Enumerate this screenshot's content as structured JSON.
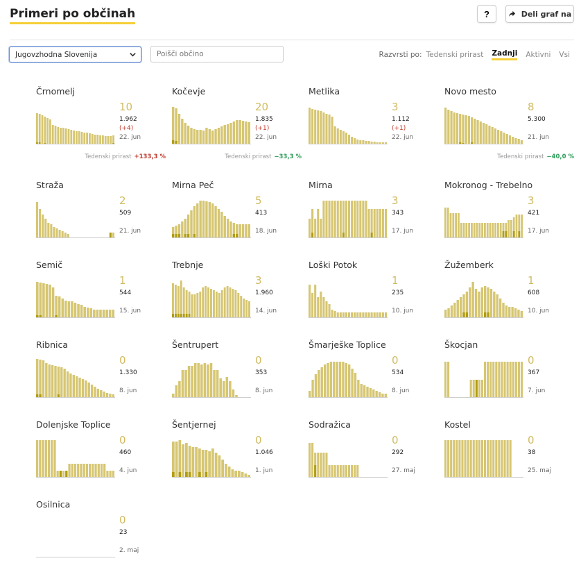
{
  "header": {
    "title": "Primeri po občinah",
    "help_label": "?",
    "share_label": "Deli graf na",
    "share_icon": "share-arrow-icon"
  },
  "filters": {
    "region_value": "Jugovzhodna Slovenija",
    "search_placeholder": "Poišči občino",
    "sort_label": "Razvrsti po:",
    "sort_options": [
      "Tedenski prirast",
      "Zadnji",
      "Aktivni",
      "Vsi"
    ],
    "active_sort": "Zadnji"
  },
  "colors": {
    "bar": "#d6c672",
    "bar_dark": "#b19d12",
    "accent": "#f5cf37",
    "number": "#d1bb62",
    "up": "#c0392b",
    "down": "#2e9d5a"
  },
  "trend_label": "Tedenski prirast",
  "chart_data": [
    {
      "type": "bar",
      "name": "Črnomelj",
      "latest": "10",
      "total": "1.962",
      "delta": "(+4)",
      "date": "22. jun",
      "trend": "+133,3 %",
      "trend_dir": "up",
      "values": [
        45,
        44,
        42,
        40,
        38,
        36,
        28,
        27,
        25,
        24,
        24,
        23,
        22,
        21,
        20,
        19,
        19,
        18,
        17,
        17,
        16,
        15,
        14,
        14,
        13,
        13,
        12,
        12,
        12,
        13
      ],
      "recent": [
        3,
        3,
        0,
        2,
        0,
        0,
        0,
        0,
        0,
        0,
        0,
        0,
        0,
        0,
        0,
        0,
        0,
        0,
        0,
        0,
        0,
        0,
        0,
        0,
        0,
        0,
        0,
        0,
        1,
        2
      ]
    },
    {
      "type": "bar",
      "name": "Kočevje",
      "latest": "20",
      "total": "1.835",
      "delta": "(+1)",
      "date": "22. jun",
      "trend": "−33,3 %",
      "trend_dir": "down",
      "values": [
        54,
        52,
        44,
        37,
        31,
        27,
        24,
        22,
        21,
        21,
        20,
        24,
        22,
        20,
        22,
        24,
        26,
        28,
        29,
        31,
        33,
        35,
        35,
        34,
        33,
        32
      ],
      "recent": [
        6,
        5,
        0,
        0,
        0,
        0,
        0,
        0,
        0,
        0,
        0,
        0,
        0,
        0,
        0,
        0,
        0,
        0,
        0,
        0,
        0,
        0,
        0,
        0,
        0,
        0
      ]
    },
    {
      "type": "bar",
      "name": "Metlika",
      "latest": "3",
      "total": "1.112",
      "delta": "(+1)",
      "date": "22. jun",
      "trend": "",
      "trend_dir": "",
      "values": [
        53,
        51,
        50,
        49,
        48,
        46,
        44,
        43,
        40,
        26,
        23,
        21,
        19,
        17,
        14,
        11,
        9,
        7,
        6,
        6,
        5,
        5,
        4,
        4,
        3,
        3,
        3,
        3
      ],
      "recent": [
        0,
        0,
        0,
        0,
        0,
        0,
        0,
        0,
        0,
        0,
        0,
        0,
        0,
        0,
        0,
        0,
        0,
        0,
        0,
        0,
        0,
        0,
        0,
        0,
        0,
        0,
        0,
        0
      ]
    },
    {
      "type": "bar",
      "name": "Novo mesto",
      "latest": "8",
      "total": "5.300",
      "delta": "",
      "date": "21. jun",
      "trend": "−40,0 %",
      "trend_dir": "down",
      "values": [
        53,
        50,
        48,
        46,
        45,
        44,
        43,
        42,
        41,
        39,
        37,
        35,
        33,
        31,
        29,
        27,
        25,
        23,
        21,
        19,
        17,
        15,
        13,
        11,
        9,
        8,
        6
      ],
      "recent": [
        0,
        0,
        0,
        0,
        0,
        3,
        2,
        0,
        0,
        3,
        0,
        0,
        0,
        0,
        0,
        0,
        0,
        0,
        0,
        0,
        0,
        0,
        0,
        0,
        0,
        0,
        0
      ]
    },
    {
      "type": "bar",
      "name": "Straža",
      "latest": "2",
      "total": "509",
      "date": "21. jun",
      "values": [
        52,
        42,
        34,
        28,
        22,
        20,
        16,
        14,
        12,
        10,
        8,
        6,
        0,
        0,
        0,
        0,
        0,
        0,
        0,
        0,
        0,
        0,
        0,
        0,
        0,
        0,
        8,
        8
      ],
      "recent": [
        0,
        0,
        0,
        0,
        0,
        0,
        0,
        0,
        0,
        0,
        0,
        0,
        0,
        0,
        0,
        0,
        0,
        0,
        0,
        0,
        0,
        0,
        0,
        0,
        0,
        0,
        8,
        0
      ]
    },
    {
      "type": "bar",
      "name": "Mirna Peč",
      "latest": "5",
      "total": "413",
      "date": "18. jun",
      "values": [
        16,
        18,
        20,
        24,
        28,
        34,
        40,
        46,
        50,
        54,
        54,
        53,
        52,
        50,
        46,
        42,
        38,
        32,
        28,
        24,
        22,
        20,
        20,
        20,
        20,
        20
      ],
      "recent": [
        6,
        6,
        6,
        0,
        6,
        6,
        0,
        6,
        0,
        0,
        0,
        0,
        0,
        0,
        0,
        0,
        0,
        0,
        0,
        0,
        6,
        6,
        0,
        0,
        0,
        0
      ]
    },
    {
      "type": "bar",
      "name": "Mirna",
      "latest": "3",
      "total": "343",
      "date": "17. jun",
      "values": [
        28,
        42,
        28,
        42,
        28,
        54,
        54,
        54,
        54,
        54,
        54,
        54,
        54,
        54,
        54,
        54,
        54,
        54,
        54,
        54,
        54,
        42,
        42,
        42,
        42,
        42,
        42,
        42
      ],
      "recent": [
        0,
        8,
        0,
        0,
        0,
        0,
        0,
        0,
        0,
        0,
        0,
        0,
        8,
        0,
        0,
        0,
        0,
        0,
        0,
        0,
        0,
        0,
        8,
        0,
        0,
        0,
        0,
        0
      ]
    },
    {
      "type": "bar",
      "name": "Mokronog - Trebelno",
      "latest": "3",
      "total": "421",
      "date": "17. jun",
      "values": [
        44,
        44,
        36,
        36,
        36,
        36,
        22,
        22,
        22,
        22,
        22,
        22,
        22,
        22,
        22,
        22,
        22,
        22,
        22,
        22,
        22,
        22,
        22,
        22,
        26,
        26,
        30,
        34,
        34,
        34
      ],
      "recent": [
        0,
        0,
        0,
        0,
        0,
        0,
        0,
        0,
        0,
        0,
        0,
        0,
        0,
        0,
        0,
        0,
        0,
        0,
        0,
        0,
        0,
        0,
        10,
        10,
        0,
        0,
        10,
        0,
        10,
        0
      ]
    },
    {
      "type": "bar",
      "name": "Semič",
      "latest": "1",
      "total": "544",
      "date": "15. jun",
      "values": [
        52,
        51,
        50,
        49,
        48,
        44,
        32,
        31,
        28,
        25,
        24,
        24,
        22,
        20,
        19,
        16,
        15,
        14,
        12,
        12,
        12,
        12,
        12,
        12,
        12
      ],
      "recent": [
        4,
        4,
        0,
        0,
        0,
        0,
        4,
        0,
        0,
        0,
        0,
        0,
        0,
        0,
        0,
        0,
        0,
        0,
        0,
        0,
        0,
        0,
        0,
        0,
        0
      ]
    },
    {
      "type": "bar",
      "name": "Trebnje",
      "latest": "3",
      "total": "1.960",
      "date": "14. jun",
      "values": [
        50,
        48,
        46,
        54,
        44,
        40,
        38,
        34,
        34,
        36,
        38,
        44,
        46,
        44,
        42,
        40,
        38,
        36,
        40,
        44,
        46,
        44,
        42,
        40,
        36,
        32,
        28,
        26,
        24
      ],
      "recent": [
        6,
        6,
        6,
        6,
        6,
        6,
        6,
        0,
        0,
        0,
        0,
        0,
        0,
        0,
        0,
        0,
        0,
        0,
        0,
        0,
        0,
        0,
        0,
        0,
        0,
        0,
        0,
        0,
        0
      ]
    },
    {
      "type": "bar",
      "name": "Loški Potok",
      "latest": "1",
      "total": "235",
      "date": "10. jun",
      "values": [
        48,
        36,
        48,
        30,
        38,
        30,
        24,
        20,
        12,
        10,
        8,
        8,
        8,
        8,
        8,
        8,
        8,
        8,
        8,
        8,
        8,
        8,
        8,
        8,
        8,
        8,
        8,
        8
      ],
      "recent": [
        0,
        0,
        0,
        0,
        0,
        0,
        0,
        0,
        0,
        0,
        0,
        0,
        0,
        0,
        0,
        0,
        0,
        0,
        0,
        0,
        0,
        0,
        0,
        0,
        0,
        0,
        0,
        0
      ]
    },
    {
      "type": "bar",
      "name": "Žužemberk",
      "latest": "1",
      "total": "608",
      "date": "10. jun",
      "values": [
        12,
        14,
        18,
        22,
        26,
        30,
        34,
        38,
        44,
        52,
        42,
        38,
        44,
        46,
        44,
        42,
        38,
        34,
        28,
        22,
        18,
        16,
        16,
        14,
        12,
        10
      ],
      "recent": [
        0,
        0,
        0,
        0,
        0,
        0,
        8,
        8,
        0,
        0,
        0,
        0,
        0,
        8,
        8,
        0,
        0,
        0,
        0,
        0,
        0,
        0,
        0,
        0,
        0,
        0
      ]
    },
    {
      "type": "bar",
      "name": "Ribnica",
      "latest": "0",
      "total": "1.330",
      "date": "8. jun",
      "values": [
        56,
        55,
        54,
        50,
        48,
        47,
        46,
        45,
        44,
        42,
        38,
        35,
        33,
        31,
        29,
        27,
        25,
        22,
        19,
        16,
        13,
        11,
        9,
        7,
        6,
        5
      ],
      "recent": [
        5,
        5,
        0,
        0,
        0,
        0,
        0,
        5,
        0,
        0,
        0,
        0,
        0,
        0,
        0,
        0,
        0,
        0,
        0,
        0,
        0,
        0,
        0,
        0,
        0,
        0
      ]
    },
    {
      "type": "bar",
      "name": "Šentrupert",
      "latest": "0",
      "total": "353",
      "date": "8. jun",
      "values": [
        6,
        18,
        24,
        40,
        40,
        46,
        46,
        50,
        50,
        48,
        50,
        48,
        50,
        40,
        40,
        28,
        24,
        30,
        24,
        12,
        4,
        0,
        0,
        0,
        0
      ],
      "recent": [
        0,
        0,
        0,
        0,
        0,
        0,
        0,
        0,
        0,
        0,
        0,
        0,
        0,
        0,
        0,
        0,
        0,
        0,
        0,
        0,
        0,
        0,
        0,
        0,
        0
      ]
    },
    {
      "type": "bar",
      "name": "Šmarješke Toplice",
      "latest": "0",
      "total": "534",
      "date": "8. jun",
      "values": [
        10,
        26,
        34,
        40,
        44,
        48,
        50,
        52,
        52,
        52,
        52,
        52,
        50,
        48,
        42,
        36,
        26,
        20,
        18,
        16,
        14,
        12,
        10,
        8,
        6,
        6
      ],
      "recent": [
        0,
        0,
        0,
        0,
        0,
        0,
        0,
        0,
        0,
        0,
        0,
        0,
        0,
        0,
        0,
        0,
        0,
        0,
        0,
        0,
        0,
        0,
        0,
        0,
        0,
        0
      ]
    },
    {
      "type": "bar",
      "name": "Škocjan",
      "latest": "0",
      "total": "367",
      "date": "7. jun",
      "values": [
        52,
        52,
        0,
        0,
        0,
        0,
        0,
        0,
        0,
        26,
        26,
        26,
        26,
        26,
        52,
        52,
        52,
        52,
        52,
        52,
        52,
        52,
        52,
        52,
        52,
        52,
        52,
        52
      ],
      "recent": [
        0,
        0,
        0,
        0,
        0,
        0,
        0,
        0,
        0,
        0,
        0,
        26,
        0,
        0,
        0,
        0,
        0,
        0,
        0,
        0,
        0,
        0,
        0,
        0,
        0,
        0,
        0,
        0
      ]
    },
    {
      "type": "bar",
      "name": "Dolenjske Toplice",
      "latest": "0",
      "total": "460",
      "date": "4. jun",
      "values": [
        54,
        54,
        54,
        54,
        54,
        54,
        54,
        10,
        10,
        10,
        10,
        20,
        20,
        20,
        20,
        20,
        20,
        20,
        20,
        20,
        20,
        20,
        20,
        20,
        10,
        10,
        10
      ],
      "recent": [
        0,
        0,
        0,
        0,
        0,
        0,
        0,
        0,
        10,
        0,
        10,
        0,
        0,
        0,
        0,
        0,
        0,
        0,
        0,
        0,
        0,
        0,
        0,
        0,
        0,
        0,
        0
      ]
    },
    {
      "type": "bar",
      "name": "Šentjernej",
      "latest": "0",
      "total": "1.046",
      "date": "1. jun",
      "values": [
        52,
        52,
        54,
        48,
        50,
        46,
        44,
        44,
        42,
        40,
        40,
        38,
        42,
        36,
        32,
        26,
        20,
        16,
        12,
        10,
        10,
        8,
        6,
        4
      ],
      "recent": [
        8,
        0,
        8,
        0,
        8,
        8,
        0,
        0,
        8,
        0,
        8,
        0,
        0,
        0,
        0,
        0,
        0,
        0,
        0,
        0,
        0,
        0,
        0,
        0
      ]
    },
    {
      "type": "bar",
      "name": "Sodražica",
      "latest": "0",
      "total": "292",
      "date": "27. maj",
      "values": [
        50,
        50,
        36,
        36,
        36,
        36,
        36,
        18,
        18,
        18,
        18,
        18,
        18,
        18,
        18,
        18,
        18,
        18,
        0,
        0,
        0,
        0,
        0,
        0,
        0,
        0,
        0,
        0
      ],
      "recent": [
        0,
        0,
        18,
        0,
        0,
        0,
        0,
        0,
        0,
        0,
        0,
        0,
        0,
        0,
        0,
        0,
        0,
        0,
        0,
        0,
        0,
        0,
        0,
        0,
        0,
        0,
        0,
        0
      ]
    },
    {
      "type": "bar",
      "name": "Kostel",
      "latest": "0",
      "total": "38",
      "date": "25. maj",
      "values": [
        54,
        54,
        54,
        54,
        54,
        54,
        54,
        54,
        54,
        54,
        54,
        54,
        54,
        54,
        54,
        54,
        54,
        54,
        54,
        54,
        54,
        54,
        54,
        54,
        0,
        0,
        0,
        0
      ],
      "recent": [
        0,
        0,
        0,
        0,
        0,
        0,
        0,
        0,
        0,
        0,
        0,
        0,
        0,
        0,
        0,
        0,
        0,
        0,
        0,
        0,
        0,
        0,
        0,
        0,
        0,
        0,
        0,
        0
      ]
    },
    {
      "type": "bar",
      "name": "Osilnica",
      "latest": "0",
      "total": "23",
      "date": "2. maj",
      "values": [
        0,
        0,
        0,
        0,
        0,
        0,
        0,
        0,
        0,
        0,
        0,
        0,
        0,
        0,
        0,
        0,
        0,
        0,
        0,
        0,
        0,
        0,
        0,
        0,
        0,
        0,
        0,
        0
      ],
      "recent": [
        0,
        0,
        0,
        0,
        0,
        0,
        0,
        0,
        0,
        0,
        0,
        0,
        0,
        0,
        0,
        0,
        0,
        0,
        0,
        0,
        0,
        0,
        0,
        0,
        0,
        0,
        0,
        0
      ]
    }
  ]
}
